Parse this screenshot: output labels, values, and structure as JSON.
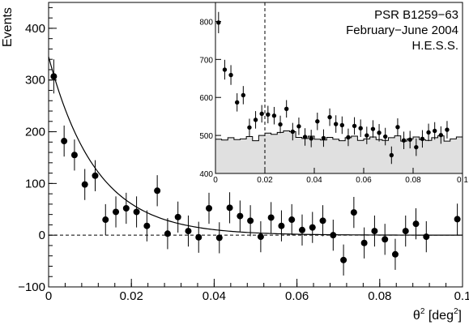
{
  "chart_data": [
    {
      "type": "scatter",
      "ylabel": "Events",
      "xlabel_base": "θ",
      "xlabel_sup": "2",
      "xlabel_rest": " [deg",
      "xlabel_sup2": "2",
      "xlabel_end": "]",
      "xlim": [
        0,
        0.1
      ],
      "ylim": [
        -100,
        450
      ],
      "xticks": [
        0,
        0.02,
        0.04,
        0.06,
        0.08,
        0.1
      ],
      "xtick_labels": [
        "0",
        "0.02",
        "0.04",
        "0.06",
        "0.08",
        "0.1"
      ],
      "yticks": [
        -100,
        0,
        100,
        200,
        300,
        400
      ],
      "ytick_labels": [
        "−100",
        "0",
        "100",
        "200",
        "300",
        "400"
      ],
      "zero_line": 0,
      "fit": {
        "type": "exponential",
        "amplitude": 345,
        "scale": 0.0115
      },
      "points": [
        {
          "x": 0.00125,
          "y": 307,
          "err": 33
        },
        {
          "x": 0.00375,
          "y": 182,
          "err": 30
        },
        {
          "x": 0.00625,
          "y": 155,
          "err": 30
        },
        {
          "x": 0.00875,
          "y": 98,
          "err": 30
        },
        {
          "x": 0.01125,
          "y": 115,
          "err": 30
        },
        {
          "x": 0.01375,
          "y": 30,
          "err": 30
        },
        {
          "x": 0.01625,
          "y": 45,
          "err": 30
        },
        {
          "x": 0.01875,
          "y": 52,
          "err": 30
        },
        {
          "x": 0.02125,
          "y": 45,
          "err": 30
        },
        {
          "x": 0.02375,
          "y": 18,
          "err": 30
        },
        {
          "x": 0.02625,
          "y": 86,
          "err": 30
        },
        {
          "x": 0.02875,
          "y": 3,
          "err": 30
        },
        {
          "x": 0.03125,
          "y": 35,
          "err": 30
        },
        {
          "x": 0.03375,
          "y": 8,
          "err": 30
        },
        {
          "x": 0.03625,
          "y": -4,
          "err": 30
        },
        {
          "x": 0.03875,
          "y": 52,
          "err": 30
        },
        {
          "x": 0.04125,
          "y": -5,
          "err": 30
        },
        {
          "x": 0.04375,
          "y": 53,
          "err": 30
        },
        {
          "x": 0.04625,
          "y": 37,
          "err": 30
        },
        {
          "x": 0.04875,
          "y": 28,
          "err": 30
        },
        {
          "x": 0.05125,
          "y": -3,
          "err": 30
        },
        {
          "x": 0.05375,
          "y": 34,
          "err": 30
        },
        {
          "x": 0.05625,
          "y": 18,
          "err": 30
        },
        {
          "x": 0.05875,
          "y": 30,
          "err": 30
        },
        {
          "x": 0.06125,
          "y": 10,
          "err": 30
        },
        {
          "x": 0.06375,
          "y": 15,
          "err": 30
        },
        {
          "x": 0.06625,
          "y": 28,
          "err": 30
        },
        {
          "x": 0.06875,
          "y": 0,
          "err": 30
        },
        {
          "x": 0.07125,
          "y": -48,
          "err": 30
        },
        {
          "x": 0.07375,
          "y": 44,
          "err": 30
        },
        {
          "x": 0.07625,
          "y": -15,
          "err": 30
        },
        {
          "x": 0.07875,
          "y": 8,
          "err": 30
        },
        {
          "x": 0.08125,
          "y": -8,
          "err": 30
        },
        {
          "x": 0.08375,
          "y": -37,
          "err": 30
        },
        {
          "x": 0.08625,
          "y": 8,
          "err": 30
        },
        {
          "x": 0.08875,
          "y": 22,
          "err": 30
        },
        {
          "x": 0.09125,
          "y": -3,
          "err": 30
        },
        {
          "x": 0.09875,
          "y": 31,
          "err": 30
        }
      ]
    },
    {
      "type": "scatter",
      "role": "inset",
      "annotation_lines": [
        "PSR B1259−63",
        "February−June 2004",
        "H.E.S.S."
      ],
      "xlim": [
        0,
        0.1
      ],
      "ylim": [
        400,
        850
      ],
      "xticks": [
        0,
        0.02,
        0.04,
        0.06,
        0.08,
        0.1
      ],
      "xtick_labels": [
        "0",
        "0.02",
        "0.04",
        "0.06",
        "0.08",
        "0.1"
      ],
      "yticks": [
        400,
        500,
        600,
        700,
        800
      ],
      "ytick_labels": [
        "400",
        "500",
        "600",
        "700",
        "800"
      ],
      "cut_line_x": 0.02,
      "background_color": "#e0e0e0",
      "background_histogram": [
        490,
        488,
        494,
        489,
        491,
        497,
        486,
        500,
        506,
        503,
        508,
        512,
        510,
        495,
        492,
        498,
        490,
        488,
        495,
        490,
        486,
        494,
        498,
        487,
        491,
        496,
        489,
        487,
        494,
        499,
        485,
        491,
        496,
        489,
        487,
        494,
        499,
        485,
        491,
        496
      ],
      "points": [
        {
          "x": 0.00125,
          "y": 797,
          "err": 28
        },
        {
          "x": 0.00375,
          "y": 673,
          "err": 26
        },
        {
          "x": 0.00625,
          "y": 659,
          "err": 26
        },
        {
          "x": 0.00875,
          "y": 587,
          "err": 24
        },
        {
          "x": 0.01125,
          "y": 606,
          "err": 24
        },
        {
          "x": 0.01375,
          "y": 521,
          "err": 23
        },
        {
          "x": 0.01625,
          "y": 541,
          "err": 23
        },
        {
          "x": 0.01875,
          "y": 557,
          "err": 23
        },
        {
          "x": 0.02125,
          "y": 555,
          "err": 23
        },
        {
          "x": 0.02375,
          "y": 552,
          "err": 23
        },
        {
          "x": 0.02625,
          "y": 529,
          "err": 23
        },
        {
          "x": 0.02875,
          "y": 570,
          "err": 23
        },
        {
          "x": 0.03125,
          "y": 510,
          "err": 23
        },
        {
          "x": 0.03375,
          "y": 524,
          "err": 23
        },
        {
          "x": 0.03625,
          "y": 496,
          "err": 23
        },
        {
          "x": 0.03875,
          "y": 492,
          "err": 23
        },
        {
          "x": 0.04125,
          "y": 537,
          "err": 23
        },
        {
          "x": 0.04375,
          "y": 493,
          "err": 23
        },
        {
          "x": 0.04625,
          "y": 548,
          "err": 23
        },
        {
          "x": 0.04875,
          "y": 530,
          "err": 23
        },
        {
          "x": 0.05125,
          "y": 527,
          "err": 23
        },
        {
          "x": 0.05375,
          "y": 495,
          "err": 23
        },
        {
          "x": 0.05625,
          "y": 525,
          "err": 23
        },
        {
          "x": 0.05875,
          "y": 519,
          "err": 23
        },
        {
          "x": 0.06125,
          "y": 500,
          "err": 23
        },
        {
          "x": 0.06375,
          "y": 517,
          "err": 23
        },
        {
          "x": 0.06625,
          "y": 507,
          "err": 23
        },
        {
          "x": 0.06875,
          "y": 497,
          "err": 23
        },
        {
          "x": 0.07125,
          "y": 448,
          "err": 23
        },
        {
          "x": 0.07375,
          "y": 522,
          "err": 23
        },
        {
          "x": 0.07625,
          "y": 487,
          "err": 23
        },
        {
          "x": 0.07875,
          "y": 489,
          "err": 23
        },
        {
          "x": 0.08125,
          "y": 469,
          "err": 23
        },
        {
          "x": 0.08375,
          "y": 491,
          "err": 23
        },
        {
          "x": 0.08625,
          "y": 508,
          "err": 23
        },
        {
          "x": 0.08875,
          "y": 512,
          "err": 23
        },
        {
          "x": 0.09125,
          "y": 501,
          "err": 23
        },
        {
          "x": 0.09375,
          "y": 515,
          "err": 23
        }
      ]
    }
  ]
}
